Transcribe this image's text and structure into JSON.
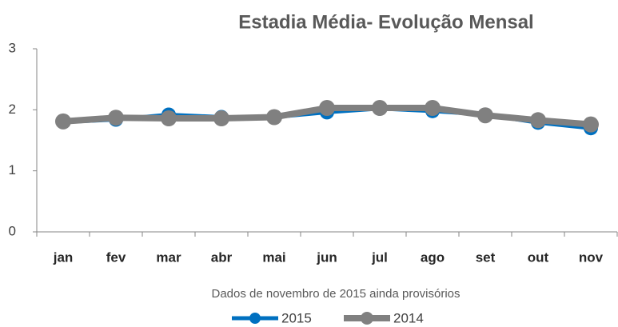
{
  "chart_data": {
    "type": "line",
    "title": "Estadia Média- Evolução Mensal",
    "note": "Dados de novembro de 2015 ainda provisórios",
    "categories": [
      "jan",
      "fev",
      "mar",
      "abr",
      "mai",
      "jun",
      "jul",
      "ago",
      "set",
      "out",
      "nov"
    ],
    "series": [
      {
        "name": "2015",
        "color": "#0070c0",
        "values": [
          1.8,
          1.84,
          1.92,
          1.88,
          1.88,
          1.96,
          2.02,
          1.98,
          1.92,
          1.79,
          1.7
        ]
      },
      {
        "name": "2014",
        "color": "#808080",
        "values": [
          1.81,
          1.87,
          1.86,
          1.86,
          1.88,
          2.03,
          2.03,
          2.03,
          1.91,
          1.83,
          1.76
        ]
      }
    ],
    "ylim": [
      0,
      3
    ],
    "yticks": [
      0,
      1,
      2,
      3
    ],
    "grid": false,
    "legend": "bottom"
  }
}
